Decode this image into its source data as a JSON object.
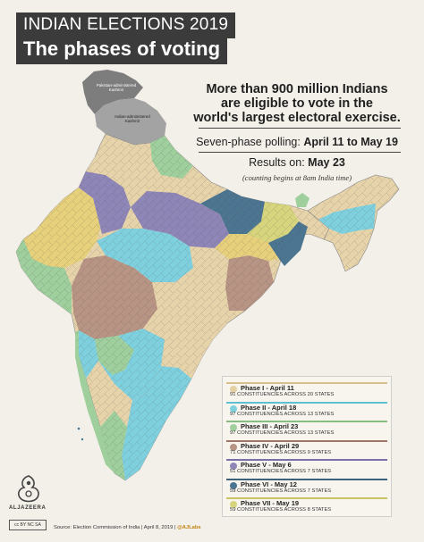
{
  "header": {
    "title": "INDIAN ELECTIONS 2019",
    "subtitle": "The phases of voting"
  },
  "info": {
    "headline_line1": "More than 900 million Indians",
    "headline_line2": "are eligible to vote in the",
    "headline_line3": "world's largest electoral exercise.",
    "polling_label": "Seven-phase polling:",
    "polling_value": "April 11 to May 19",
    "results_label": "Results on:",
    "results_value": "May 23",
    "results_note": "(counting begins at 8am India time)"
  },
  "map_labels": {
    "pakistan_kashmir": "Pakistan-administered Kashmir",
    "india_kashmir": "Indian-administered Kashmir"
  },
  "legend": [
    {
      "phase": "Phase I - April 11",
      "detail": "91 CONSTITUENCIES ACROSS 20 STATES",
      "color": "#e5cfa4",
      "bar": "#d9bf8c"
    },
    {
      "phase": "Phase II - April 18",
      "detail": "97 CONSTITUENCIES ACROSS 13 STATES",
      "color": "#7fd0de",
      "bar": "#5fc0d2"
    },
    {
      "phase": "Phase III - April 23",
      "detail": "97 CONSTITUENCIES ACROSS 13 STATES",
      "color": "#9fcf9c",
      "bar": "#86be82"
    },
    {
      "phase": "Phase IV - April 29",
      "detail": "71 CONSTITUENCIES ACROSS 9 STATES",
      "color": "#b89484",
      "bar": "#a07868"
    },
    {
      "phase": "Phase V - May 6",
      "detail": "51 CONSTITUENCIES ACROSS 7 STATES",
      "color": "#8f86b8",
      "bar": "#7a70a8"
    },
    {
      "phase": "Phase VI - May 12",
      "detail": "59 CONSTITUENCIES ACROSS 7 STATES",
      "color": "#4b7590",
      "bar": "#3d637c"
    },
    {
      "phase": "Phase VII - May 19",
      "detail": "59 CONSTITUENCIES ACROSS 8 STATES",
      "color": "#d7d47e",
      "bar": "#c8c466"
    }
  ],
  "footer": {
    "source": "Source: Election Commission of India",
    "date": "April 8, 2019",
    "handle": "@AJLabs"
  },
  "brand": {
    "name": "ALJAZEERA",
    "license": "cc BY NC SA"
  }
}
